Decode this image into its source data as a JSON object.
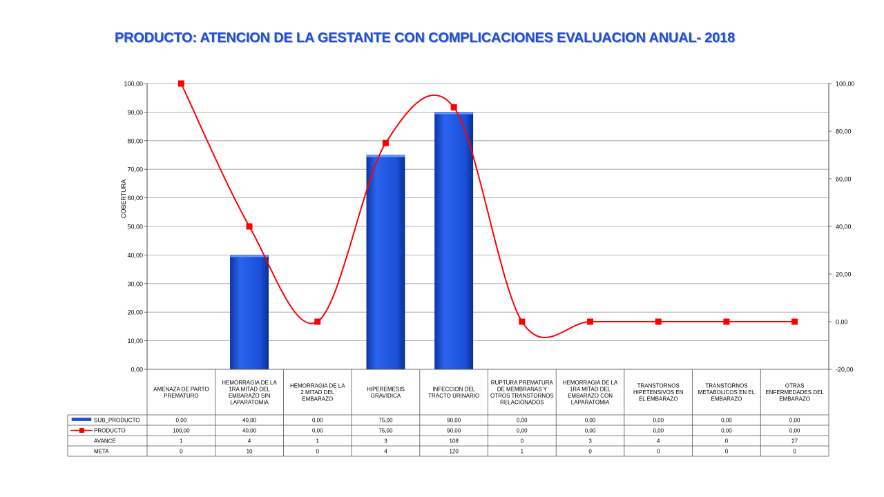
{
  "page": {
    "title": "PRODUCTO:  ATENCION DE LA GESTANTE CON COMPLICACIONES EVALUACION ANUAL- 2018"
  },
  "chart_data": {
    "type": "bar",
    "ylabel": "COBERTURA",
    "ylim": [
      0,
      100
    ],
    "y_ticks": [
      "0,00",
      "10,00",
      "20,00",
      "30,00",
      "40,00",
      "50,00",
      "60,00",
      "70,00",
      "80,00",
      "90,00",
      "100,00"
    ],
    "y2lim": [
      -20,
      100
    ],
    "y2_ticks": [
      "-20,00",
      "0,00",
      "20,00",
      "40,00",
      "60,00",
      "80,00",
      "100,00"
    ],
    "categories": [
      "AMENAZA DE PARTO PREMATURO",
      "HEMORRAGIA DE LA 1RA MITAD DEL EMBARAZO SIN LAPARATOMIA",
      "HEMORRAGIA DE LA 2 MITAD DEL EMBARAZO",
      "HIPEREMESIS GRAVIDICA",
      "INFECCION DEL TRACTO URINARIO",
      "RUPTURA PREMATURA DE MEMBRANAS Y OTROS TRANSTORNOS RELACIONADOS",
      "HEMORRAGIA DE LA 1RA MITAD DEL EMBARAZO CON LAPARATOMIA",
      "TRANSTORNOS HIPETENSIVOS EN EL EMBARAZO",
      "TRANSTORNOS METABOLICOS EN EL EMBARAZO",
      "OTRAS ENFERMEDADES DEL EMBARAZO"
    ],
    "series": [
      {
        "name": "SUB_PRODUCTO",
        "type": "bar",
        "axis": "primary",
        "color": "#1b4fd8",
        "values": [
          0,
          40,
          0,
          75,
          90,
          0,
          0,
          0,
          0,
          0
        ],
        "labels": [
          "0,00",
          "40,00",
          "0,00",
          "75,00",
          "90,00",
          "0,00",
          "0,00",
          "0,00",
          "0,00",
          "0,00"
        ]
      },
      {
        "name": "PRODUCTO",
        "type": "line",
        "axis": "secondary",
        "color": "#ff0000",
        "values": [
          100,
          40,
          0,
          75,
          90,
          0,
          0,
          0,
          0,
          0
        ],
        "labels": [
          "100,00",
          "40,00",
          "0,00",
          "75,00",
          "90,00",
          "0,00",
          "0,00",
          "0,00",
          "0,00",
          "0,00"
        ]
      }
    ],
    "table_rows": [
      {
        "name": "AVANCE",
        "values": [
          "1",
          "4",
          "1",
          "3",
          "108",
          "0",
          "3",
          "4",
          "0",
          "27"
        ]
      },
      {
        "name": "META",
        "values": [
          "0",
          "10",
          "0",
          "4",
          "120",
          "1",
          "0",
          "0",
          "0",
          "0"
        ]
      }
    ],
    "grid": true,
    "legend": "data-table"
  }
}
